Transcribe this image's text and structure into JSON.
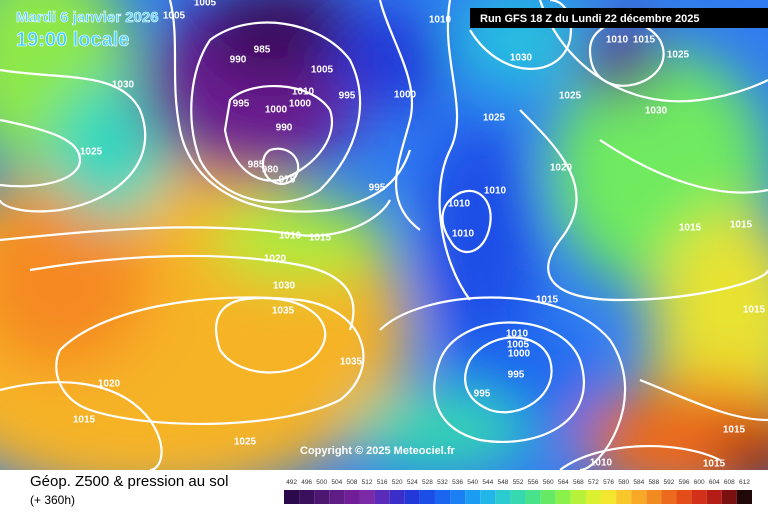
{
  "header": {
    "date": "Mardi 6 janvier 2026",
    "time": "19:00 locale",
    "run": "Run GFS 18 Z du Lundi 22 décembre 2025"
  },
  "copyright": "Copyright © 2025 Meteociel.fr",
  "footer": {
    "title": "Géop. Z500 & pression au sol",
    "lead": "(+ 360h)"
  },
  "isobar_labels": [
    "1005",
    "1005",
    "1010",
    "985",
    "990",
    "1005",
    "1010",
    "1000",
    "995",
    "1000",
    "995",
    "1000",
    "990",
    "985",
    "980",
    "975",
    "1030",
    "1025",
    "1030",
    "1010",
    "1015",
    "1025",
    "1025",
    "1025",
    "1030",
    "1020",
    "995",
    "1010",
    "1010",
    "1010",
    "1010",
    "1015",
    "1020",
    "1030",
    "1035",
    "1035",
    "1015",
    "1015",
    "1015",
    "1015",
    "1010",
    "1005",
    "1000",
    "995",
    "995",
    "1020",
    "1015",
    "1025",
    "1010",
    "1015",
    "1015"
  ],
  "scale": {
    "values": [
      492,
      496,
      500,
      504,
      508,
      512,
      516,
      520,
      524,
      528,
      532,
      536,
      540,
      544,
      548,
      552,
      556,
      560,
      564,
      568,
      572,
      576,
      580,
      584,
      588,
      592,
      596,
      600,
      604,
      608,
      612
    ],
    "colors": [
      "#2a0a4a",
      "#3a0f5c",
      "#4d1670",
      "#5e1c84",
      "#701f96",
      "#7b2aa8",
      "#5a2ab8",
      "#3b2ec8",
      "#2238d8",
      "#1a4ee6",
      "#1a66f0",
      "#1a80f4",
      "#1a9cf2",
      "#22b6e8",
      "#2ccbd2",
      "#36d8b0",
      "#48e28a",
      "#66ea66",
      "#8cf04a",
      "#b6f23a",
      "#dcf032",
      "#f4e62e",
      "#f8c82a",
      "#f6a826",
      "#f28a22",
      "#ec6a1e",
      "#e44c1a",
      "#d23018",
      "#b41c16",
      "#7a1010",
      "#200808"
    ]
  }
}
